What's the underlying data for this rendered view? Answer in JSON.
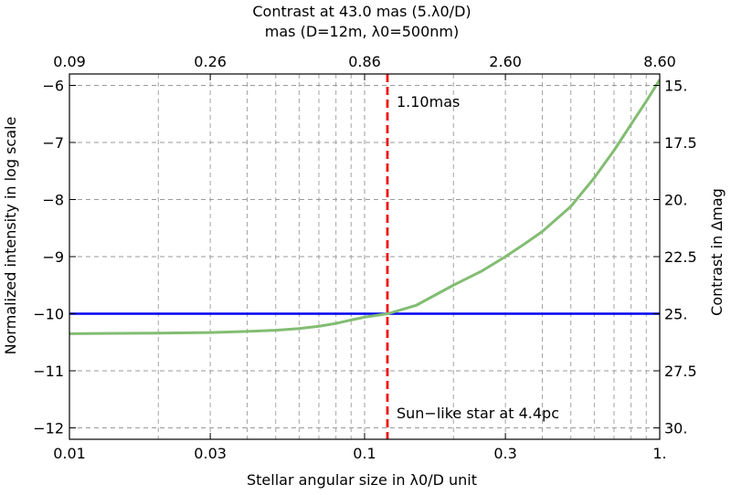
{
  "chart_data": {
    "type": "line",
    "title_line1": "Contrast at 43.0 mas (5.λ0/D)",
    "title_line2": "mas (D=12m, λ0=500nm)",
    "xlabel": "Stellar angular size in λ0/D unit",
    "ylabel": "Normalized intensity in log scale",
    "y2label": "Contrast in Δmag",
    "x_scale": "log",
    "xlim": [
      0.01,
      1.0
    ],
    "ylim": [
      -12.2,
      -5.8
    ],
    "grid": true,
    "x_ticks": [
      {
        "value": 0.01,
        "label": "0.01"
      },
      {
        "value": 0.03,
        "label": "0.03"
      },
      {
        "value": 0.1,
        "label": "0.1"
      },
      {
        "value": 0.3,
        "label": "0.3"
      },
      {
        "value": 1.0,
        "label": "1."
      }
    ],
    "y_ticks": [
      {
        "value": -6,
        "label": "−6"
      },
      {
        "value": -7,
        "label": "−7"
      },
      {
        "value": -8,
        "label": "−8"
      },
      {
        "value": -9,
        "label": "−9"
      },
      {
        "value": -10,
        "label": "−10"
      },
      {
        "value": -11,
        "label": "−11"
      },
      {
        "value": -12,
        "label": "−12"
      }
    ],
    "top_ticks": [
      {
        "value": 0.01,
        "label": "0.09"
      },
      {
        "value": 0.03,
        "label": "0.26"
      },
      {
        "value": 0.1,
        "label": "0.86"
      },
      {
        "value": 0.3,
        "label": "2.60"
      },
      {
        "value": 1.0,
        "label": "8.60"
      }
    ],
    "right_ticks": [
      {
        "value": -6,
        "label": "15."
      },
      {
        "value": -7,
        "label": "17.5"
      },
      {
        "value": -8,
        "label": "20."
      },
      {
        "value": -9,
        "label": "22.5"
      },
      {
        "value": -10,
        "label": "25."
      },
      {
        "value": -11,
        "label": "27.5"
      },
      {
        "value": -12,
        "label": "30."
      }
    ],
    "series": [
      {
        "color": "#82bd72",
        "x": [
          0.01,
          0.02,
          0.03,
          0.04,
          0.05,
          0.06,
          0.07,
          0.08,
          0.09,
          0.1,
          0.12,
          0.15,
          0.2,
          0.25,
          0.3,
          0.35,
          0.4,
          0.5,
          0.6,
          0.7,
          0.8,
          0.9,
          1.0
        ],
        "y": [
          -10.35,
          -10.34,
          -10.33,
          -10.31,
          -10.29,
          -10.26,
          -10.22,
          -10.17,
          -10.11,
          -10.06,
          -10.0,
          -9.85,
          -9.5,
          -9.25,
          -9.0,
          -8.77,
          -8.56,
          -8.12,
          -7.62,
          -7.14,
          -6.68,
          -6.28,
          -5.9
        ]
      }
    ],
    "hline": {
      "y": -10,
      "color": "#0000ee"
    },
    "vline": {
      "x": 0.1195,
      "color": "#ee1111"
    },
    "annotations": [
      {
        "text": "1.10mas",
        "color": "#ee1111",
        "position": "top"
      },
      {
        "text": "Sun−like star at 4.4pc",
        "color": "#ee1111",
        "position": "bottom"
      }
    ]
  }
}
